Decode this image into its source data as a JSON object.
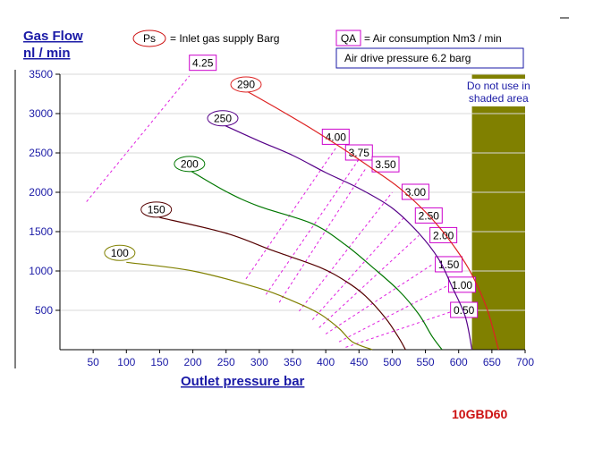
{
  "chart_data": {
    "type": "line",
    "ylabel_line1": "Gas Flow",
    "ylabel_line2": "nl / min",
    "xlabel": "Outlet pressure   bar",
    "xlim": [
      0,
      700
    ],
    "ylim": [
      0,
      3500
    ],
    "x_ticks": [
      50,
      100,
      150,
      200,
      250,
      300,
      350,
      400,
      450,
      500,
      550,
      600,
      650,
      700
    ],
    "y_ticks": [
      500,
      1000,
      1500,
      2000,
      2500,
      3000,
      3500
    ],
    "legend_ps_symbol": "Ps",
    "legend_ps_text": "= Inlet gas supply  Barg",
    "legend_qa_symbol": "QA",
    "legend_qa_text": "= Air consumption  Nm3 / min",
    "drive_pressure": "Air drive pressure  6.2 barg",
    "shaded_region": {
      "x_from": 620,
      "x_to": 700,
      "note_lines": [
        "Do not use in",
        "shaded area"
      ]
    },
    "model_code": "10GBD60",
    "series": [
      {
        "name": "100",
        "label_at": [
          90,
          1230
        ],
        "points": [
          [
            100,
            1110
          ],
          [
            200,
            1000
          ],
          [
            300,
            780
          ],
          [
            350,
            620
          ],
          [
            390,
            460
          ],
          [
            420,
            270
          ],
          [
            440,
            100
          ],
          [
            470,
            0
          ]
        ]
      },
      {
        "name": "150",
        "label_at": [
          145,
          1780
        ],
        "points": [
          [
            150,
            1680
          ],
          [
            250,
            1480
          ],
          [
            320,
            1260
          ],
          [
            390,
            1050
          ],
          [
            430,
            870
          ],
          [
            460,
            680
          ],
          [
            490,
            400
          ],
          [
            510,
            150
          ],
          [
            520,
            0
          ]
        ]
      },
      {
        "name": "200",
        "label_at": [
          195,
          2360
        ],
        "points": [
          [
            195,
            2280
          ],
          [
            250,
            2010
          ],
          [
            300,
            1820
          ],
          [
            380,
            1600
          ],
          [
            430,
            1330
          ],
          [
            470,
            1050
          ],
          [
            510,
            750
          ],
          [
            540,
            450
          ],
          [
            560,
            170
          ],
          [
            575,
            0
          ]
        ]
      },
      {
        "name": "250",
        "label_at": [
          245,
          2940
        ],
        "points": [
          [
            245,
            2860
          ],
          [
            300,
            2650
          ],
          [
            350,
            2470
          ],
          [
            400,
            2250
          ],
          [
            450,
            2050
          ],
          [
            500,
            1800
          ],
          [
            540,
            1480
          ],
          [
            570,
            1150
          ],
          [
            590,
            800
          ],
          [
            610,
            420
          ],
          [
            620,
            0
          ]
        ]
      },
      {
        "name": "290",
        "label_at": [
          280,
          3370
        ],
        "points": [
          [
            280,
            3290
          ],
          [
            330,
            3050
          ],
          [
            380,
            2800
          ],
          [
            430,
            2530
          ],
          [
            470,
            2300
          ],
          [
            510,
            2060
          ],
          [
            550,
            1750
          ],
          [
            580,
            1460
          ],
          [
            610,
            1100
          ],
          [
            630,
            780
          ],
          [
            645,
            460
          ],
          [
            660,
            0
          ]
        ]
      }
    ],
    "air_consumption": [
      {
        "label": "4.25",
        "label_at": [
          215,
          3640
        ],
        "from": [
          40,
          1880
        ],
        "to": [
          195,
          3480
        ]
      },
      {
        "label": "4.00",
        "label_at": [
          415,
          2700
        ],
        "from": [
          280,
          900
        ],
        "to": [
          415,
          2560
        ]
      },
      {
        "label": "3.75",
        "label_at": [
          450,
          2500
        ],
        "from": [
          310,
          700
        ],
        "to": [
          450,
          2420
        ]
      },
      {
        "label": "3.50",
        "label_at": [
          490,
          2350
        ],
        "from": [
          330,
          600
        ],
        "to": [
          460,
          2300
        ]
      },
      {
        "label": "3.00",
        "label_at": [
          535,
          2000
        ],
        "from": [
          360,
          490
        ],
        "to": [
          500,
          2000
        ]
      },
      {
        "label": "2.50",
        "label_at": [
          555,
          1700
        ],
        "from": [
          380,
          380
        ],
        "to": [
          520,
          1700
        ]
      },
      {
        "label": "2.00",
        "label_at": [
          577,
          1450
        ],
        "from": [
          390,
          280
        ],
        "to": [
          540,
          1450
        ]
      },
      {
        "label": "1.50",
        "label_at": [
          585,
          1080
        ],
        "from": [
          400,
          200
        ],
        "to": [
          560,
          1080
        ]
      },
      {
        "label": "1.00",
        "label_at": [
          605,
          820
        ],
        "from": [
          420,
          100
        ],
        "to": [
          585,
          820
        ]
      },
      {
        "label": "0.50",
        "label_at": [
          608,
          500
        ],
        "from": [
          430,
          30
        ],
        "to": [
          595,
          500
        ]
      }
    ]
  }
}
